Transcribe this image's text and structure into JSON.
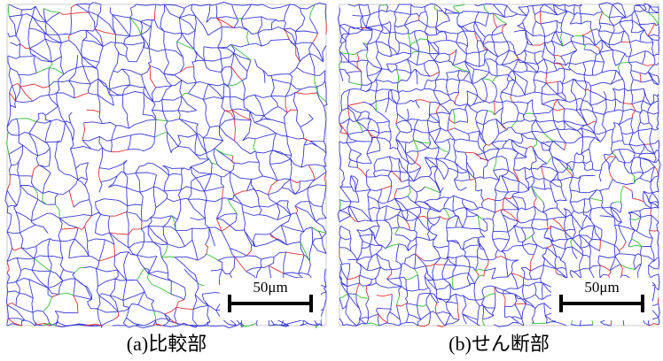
{
  "panels": [
    {
      "caption": "(a)比較部",
      "scale_label": "50μm"
    },
    {
      "caption": "(b)せん断部",
      "scale_label": "50μm"
    }
  ]
}
